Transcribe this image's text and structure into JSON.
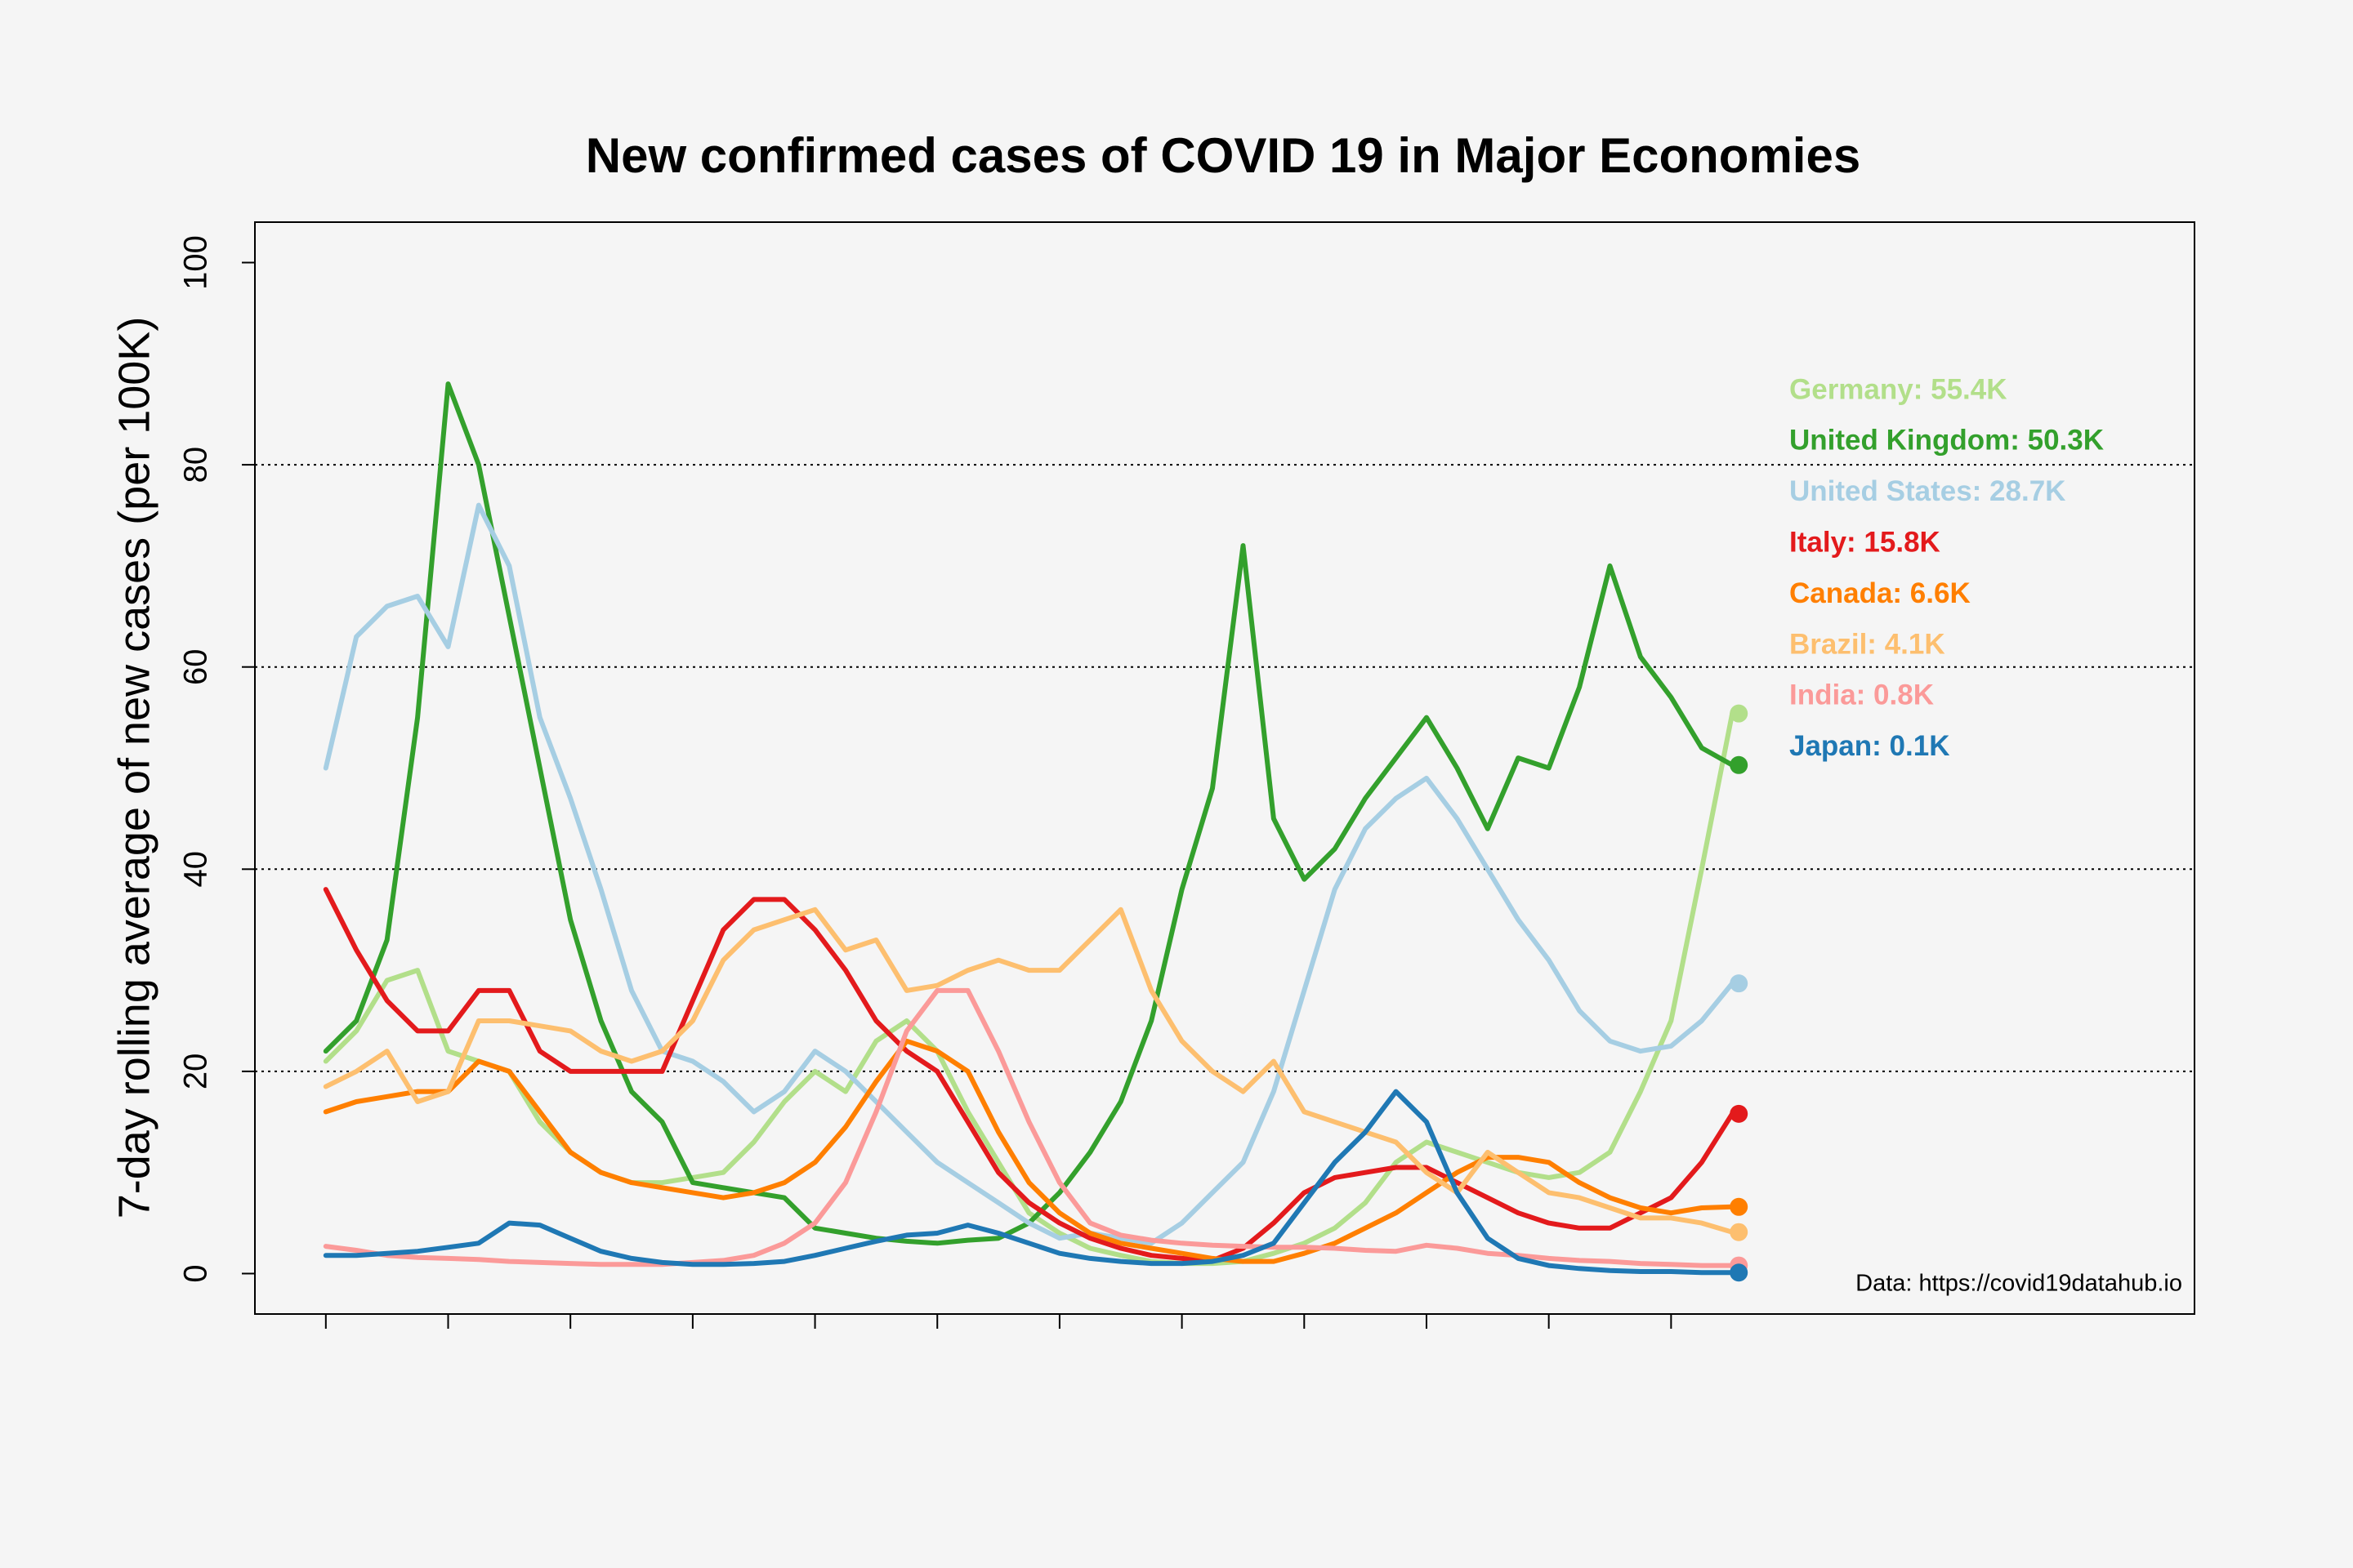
{
  "chart_data": {
    "type": "line",
    "title": "New confirmed cases of COVID 19 in Major Economies",
    "ylabel": "7-day rolling average of new cases (per 100K)",
    "annotation": "Data: https://covid19datahub.io",
    "x": [
      0,
      0.25,
      0.5,
      0.75,
      1,
      1.25,
      1.5,
      1.75,
      2,
      2.25,
      2.5,
      2.75,
      3,
      3.25,
      3.5,
      3.75,
      4,
      4.25,
      4.5,
      4.75,
      5,
      5.25,
      5.5,
      5.75,
      6,
      6.25,
      6.5,
      6.75,
      7,
      7.25,
      7.5,
      7.75,
      8,
      8.25,
      8.5,
      8.75,
      9,
      9.25,
      9.5,
      9.75,
      10,
      10.25,
      10.5,
      10.75,
      11,
      11.25,
      11.5
    ],
    "xlim": [
      -0.58,
      15.28
    ],
    "xticks": [
      0,
      1,
      2,
      3,
      4,
      5,
      6,
      7,
      8,
      9,
      10,
      11
    ],
    "ylim": [
      -4,
      104
    ],
    "yticks": [
      0,
      20,
      40,
      60,
      80,
      100
    ],
    "grid": true,
    "legend": "right",
    "series": [
      {
        "name": "Germany: 55.4K",
        "color": "#b2df8a",
        "values": [
          21,
          24,
          29,
          30,
          22,
          21,
          20,
          15,
          12,
          10,
          9,
          9,
          9.5,
          10,
          13,
          17,
          20,
          18,
          23,
          25,
          22,
          16,
          11,
          6,
          4,
          2.5,
          1.8,
          1.2,
          1,
          1,
          1.2,
          2,
          3,
          4.5,
          7,
          11,
          13,
          12,
          11,
          10,
          9.5,
          10,
          12,
          18,
          25,
          40,
          55.4
        ]
      },
      {
        "name": "United Kingdom: 50.3K",
        "color": "#33a02c",
        "values": [
          22,
          25,
          33,
          55,
          88,
          80,
          65,
          50,
          35,
          25,
          18,
          15,
          9,
          8.5,
          8,
          7.5,
          4.5,
          4,
          3.5,
          3.2,
          3,
          3.3,
          3.5,
          5,
          8,
          12,
          17,
          25,
          38,
          48,
          72,
          45,
          39,
          42,
          47,
          51,
          55,
          50,
          44,
          51,
          50,
          58,
          70,
          61,
          57,
          52,
          50.3
        ]
      },
      {
        "name": "United States: 28.7K",
        "color": "#a6cee3",
        "values": [
          50,
          63,
          66,
          67,
          62,
          76,
          70,
          55,
          47,
          38,
          28,
          22,
          21,
          19,
          16,
          18,
          22,
          20,
          17,
          14,
          11,
          9,
          7,
          5,
          3.5,
          4,
          3.5,
          3,
          5,
          8,
          11,
          18,
          28,
          38,
          44,
          47,
          49,
          45,
          40,
          35,
          31,
          26,
          23,
          22,
          22.5,
          25,
          28.7
        ]
      },
      {
        "name": "Italy: 15.8K",
        "color": "#e31a1c",
        "values": [
          38,
          32,
          27,
          24,
          24,
          28,
          28,
          22,
          20,
          20,
          20,
          20,
          27,
          34,
          37,
          37,
          34,
          30,
          25,
          22,
          20,
          15,
          10,
          7,
          5,
          3.5,
          2.5,
          1.8,
          1.5,
          1.3,
          2.5,
          5,
          8,
          9.5,
          10,
          10.5,
          10.5,
          9,
          7.5,
          6,
          5,
          4.5,
          4.5,
          6,
          7.5,
          11,
          15.8
        ]
      },
      {
        "name": "Canada: 6.6K",
        "color": "#ff7f00",
        "values": [
          16,
          17,
          17.5,
          18,
          18,
          21,
          20,
          16,
          12,
          10,
          9,
          8.5,
          8,
          7.5,
          8,
          9,
          11,
          14.5,
          19,
          23,
          22,
          20,
          14,
          9,
          6,
          4,
          3,
          2.5,
          2,
          1.5,
          1.2,
          1.2,
          2,
          3,
          4.5,
          6,
          8,
          10,
          11.5,
          11.5,
          11,
          9,
          7.5,
          6.5,
          6,
          6.5,
          6.6
        ]
      },
      {
        "name": "Brazil: 4.1K",
        "color": "#fdbf6f",
        "values": [
          18.5,
          20,
          22,
          17,
          18,
          25,
          25,
          24.5,
          24,
          22,
          21,
          22,
          25,
          31,
          34,
          35,
          36,
          32,
          33,
          28,
          28.5,
          30,
          31,
          30,
          30,
          33,
          36,
          28,
          23,
          20,
          18,
          21,
          16,
          15,
          14,
          13,
          10,
          8,
          12,
          10,
          8,
          7.5,
          6.5,
          5.5,
          5.5,
          5,
          4.1
        ]
      },
      {
        "name": "India: 0.8K",
        "color": "#fb9a99",
        "values": [
          2.7,
          2.3,
          1.8,
          1.6,
          1.5,
          1.4,
          1.2,
          1.1,
          1,
          0.9,
          0.9,
          0.9,
          1.1,
          1.3,
          1.8,
          3,
          5,
          9,
          16,
          24,
          28,
          28,
          22,
          15,
          9,
          5,
          3.8,
          3.3,
          3,
          2.8,
          2.7,
          2.6,
          2.6,
          2.5,
          2.3,
          2.2,
          2.8,
          2.5,
          2,
          1.8,
          1.5,
          1.3,
          1.2,
          1,
          0.9,
          0.8,
          0.8
        ]
      },
      {
        "name": "Japan: 0.1K",
        "color": "#1f78b4",
        "values": [
          1.8,
          1.8,
          2,
          2.2,
          2.6,
          3,
          5,
          4.8,
          3.5,
          2.2,
          1.5,
          1.1,
          0.9,
          0.9,
          1,
          1.2,
          1.8,
          2.5,
          3.2,
          3.8,
          4,
          4.8,
          4,
          3,
          2,
          1.5,
          1.2,
          1,
          1,
          1.2,
          1.8,
          3,
          7,
          11,
          14,
          18,
          15,
          8,
          3.5,
          1.5,
          0.8,
          0.5,
          0.3,
          0.2,
          0.2,
          0.1,
          0.1
        ]
      }
    ]
  }
}
